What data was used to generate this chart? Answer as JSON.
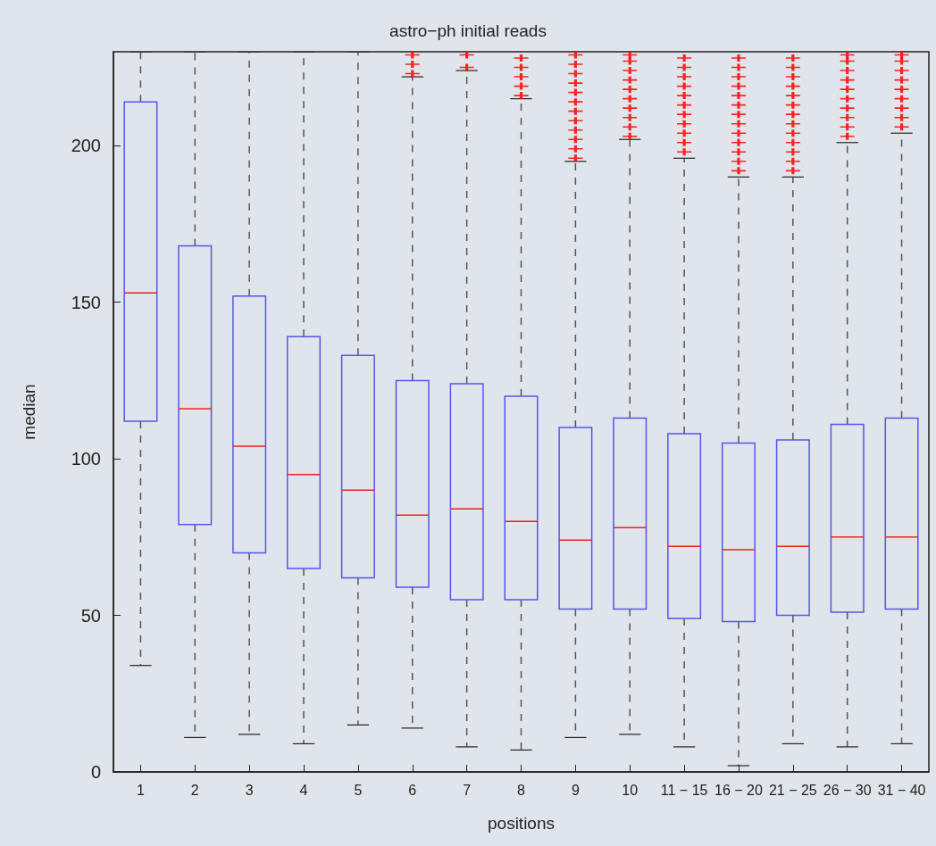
{
  "chart_data": {
    "type": "box",
    "title": "astro−ph initial reads",
    "xlabel": "positions",
    "ylabel": "median",
    "categories": [
      "1",
      "2",
      "3",
      "4",
      "5",
      "6",
      "7",
      "8",
      "9",
      "10",
      "11 − 15",
      "16 − 20",
      "21 − 25",
      "26 − 30",
      "31 − 40"
    ],
    "ylim": [
      0,
      230
    ],
    "yticks": [
      0,
      50,
      100,
      150,
      200
    ],
    "marker": "cross",
    "color": "#5555ee",
    "boxes": [
      {
        "low": 34,
        "q1": 112,
        "median": 153,
        "q3": 214,
        "high": 230
      },
      {
        "low": 11,
        "q1": 79,
        "median": 116,
        "q3": 168,
        "high": 230
      },
      {
        "low": 12,
        "q1": 70,
        "median": 104,
        "q3": 152,
        "high": 230
      },
      {
        "low": 9,
        "q1": 65,
        "median": 95,
        "q3": 139,
        "high": 230
      },
      {
        "low": 15,
        "q1": 62,
        "median": 90,
        "q3": 133,
        "high": 230
      },
      {
        "low": 14,
        "q1": 59,
        "median": 82,
        "q3": 125,
        "high": 222,
        "outliers": [
          223,
          226,
          229
        ]
      },
      {
        "low": 8,
        "q1": 55,
        "median": 84,
        "q3": 124,
        "high": 224,
        "outliers": [
          225,
          229
        ]
      },
      {
        "low": 7,
        "q1": 55,
        "median": 80,
        "q3": 120,
        "high": 215,
        "outliers": [
          216,
          219,
          222,
          225,
          228
        ]
      },
      {
        "low": 11,
        "q1": 52,
        "median": 74,
        "q3": 110,
        "high": 195,
        "outliers": [
          196,
          199,
          202,
          205,
          208,
          211,
          214,
          217,
          220,
          223,
          226,
          229
        ]
      },
      {
        "low": 12,
        "q1": 52,
        "median": 78,
        "q3": 113,
        "high": 202,
        "outliers": [
          203,
          206,
          209,
          212,
          215,
          218,
          221,
          224,
          227,
          229
        ]
      },
      {
        "low": 8,
        "q1": 49,
        "median": 72,
        "q3": 108,
        "high": 196,
        "outliers": [
          198,
          201,
          204,
          207,
          210,
          213,
          216,
          219,
          222,
          225,
          228
        ]
      },
      {
        "low": 2,
        "q1": 48,
        "median": 71,
        "q3": 105,
        "high": 190,
        "outliers": [
          192,
          195,
          198,
          201,
          204,
          207,
          210,
          213,
          216,
          219,
          222,
          225,
          228
        ]
      },
      {
        "low": 9,
        "q1": 50,
        "median": 72,
        "q3": 106,
        "high": 190,
        "outliers": [
          192,
          195,
          198,
          201,
          204,
          207,
          210,
          213,
          216,
          219,
          222,
          225,
          228
        ]
      },
      {
        "low": 8,
        "q1": 51,
        "median": 75,
        "q3": 111,
        "high": 201,
        "outliers": [
          203,
          206,
          209,
          212,
          215,
          218,
          221,
          224,
          227,
          229
        ]
      },
      {
        "low": 9,
        "q1": 52,
        "median": 75,
        "q3": 113,
        "high": 204,
        "outliers": [
          206,
          209,
          212,
          215,
          218,
          221,
          224,
          227,
          229
        ]
      }
    ]
  }
}
